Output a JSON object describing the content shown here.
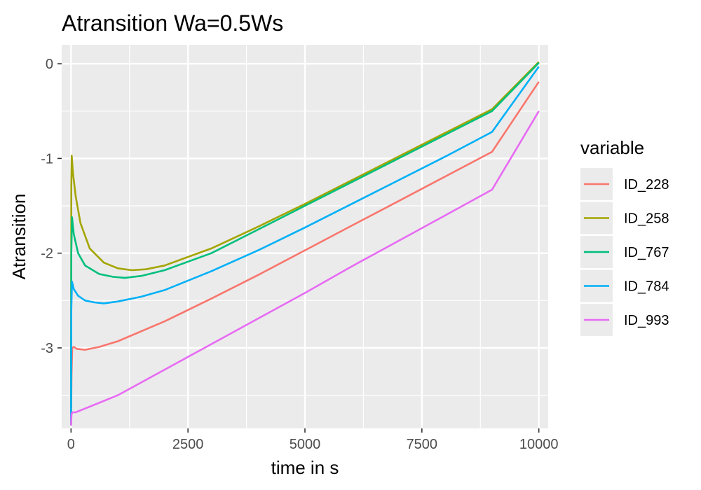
{
  "chart_data": {
    "type": "line",
    "title": "Atransition Wa=0.5Ws",
    "xlabel": "time in s",
    "ylabel": "Atransition",
    "xlim": [
      -200,
      10200
    ],
    "ylim": [
      -3.85,
      0.2
    ],
    "x_ticks": [
      0,
      2500,
      5000,
      7500,
      10000
    ],
    "x_tick_labels": [
      "0",
      "2500",
      "5000",
      "7500",
      "10000"
    ],
    "y_ticks": [
      0,
      -1,
      -2,
      -3
    ],
    "y_tick_labels": [
      "0",
      "-1",
      "-2",
      "-3"
    ],
    "grid": true,
    "legend": {
      "title": "variable",
      "position": "right"
    },
    "series": [
      {
        "name": "ID_228",
        "color": "#F8766D",
        "points": [
          [
            0,
            -3.82
          ],
          [
            10,
            -3.3
          ],
          [
            25,
            -3.0
          ],
          [
            60,
            -2.99
          ],
          [
            120,
            -3.01
          ],
          [
            300,
            -3.02
          ],
          [
            600,
            -2.99
          ],
          [
            1000,
            -2.93
          ],
          [
            2000,
            -2.72
          ],
          [
            3000,
            -2.48
          ],
          [
            4000,
            -2.23
          ],
          [
            5000,
            -1.97
          ],
          [
            6000,
            -1.71
          ],
          [
            7000,
            -1.45
          ],
          [
            8000,
            -1.19
          ],
          [
            9000,
            -0.93
          ],
          [
            10000,
            -0.19
          ]
        ]
      },
      {
        "name": "ID_258",
        "color": "#A3A500",
        "points": [
          [
            0,
            -3.82
          ],
          [
            5,
            -1.3
          ],
          [
            15,
            -0.97
          ],
          [
            40,
            -1.15
          ],
          [
            100,
            -1.4
          ],
          [
            200,
            -1.68
          ],
          [
            400,
            -1.95
          ],
          [
            700,
            -2.1
          ],
          [
            1000,
            -2.16
          ],
          [
            1300,
            -2.18
          ],
          [
            1600,
            -2.17
          ],
          [
            2000,
            -2.13
          ],
          [
            3000,
            -1.95
          ],
          [
            4000,
            -1.72
          ],
          [
            5000,
            -1.48
          ],
          [
            6000,
            -1.23
          ],
          [
            7000,
            -0.98
          ],
          [
            8000,
            -0.73
          ],
          [
            9000,
            -0.48
          ],
          [
            10000,
            0.02
          ]
        ]
      },
      {
        "name": "ID_767",
        "color": "#00BF7D",
        "points": [
          [
            0,
            -3.82
          ],
          [
            5,
            -2.0
          ],
          [
            20,
            -1.62
          ],
          [
            60,
            -1.8
          ],
          [
            150,
            -2.0
          ],
          [
            300,
            -2.13
          ],
          [
            600,
            -2.22
          ],
          [
            900,
            -2.25
          ],
          [
            1150,
            -2.26
          ],
          [
            1500,
            -2.24
          ],
          [
            2000,
            -2.18
          ],
          [
            3000,
            -2.0
          ],
          [
            4000,
            -1.75
          ],
          [
            5000,
            -1.5
          ],
          [
            6000,
            -1.25
          ],
          [
            7000,
            -1.0
          ],
          [
            8000,
            -0.75
          ],
          [
            9000,
            -0.5
          ],
          [
            10000,
            0.01
          ]
        ]
      },
      {
        "name": "ID_784",
        "color": "#00B0F6",
        "points": [
          [
            0,
            -3.82
          ],
          [
            5,
            -2.6
          ],
          [
            20,
            -2.3
          ],
          [
            60,
            -2.38
          ],
          [
            150,
            -2.45
          ],
          [
            300,
            -2.5
          ],
          [
            500,
            -2.52
          ],
          [
            700,
            -2.53
          ],
          [
            1000,
            -2.51
          ],
          [
            1500,
            -2.46
          ],
          [
            2000,
            -2.39
          ],
          [
            3000,
            -2.19
          ],
          [
            4000,
            -1.97
          ],
          [
            5000,
            -1.73
          ],
          [
            6000,
            -1.48
          ],
          [
            7000,
            -1.23
          ],
          [
            8000,
            -0.98
          ],
          [
            9000,
            -0.72
          ],
          [
            10000,
            -0.03
          ]
        ]
      },
      {
        "name": "ID_993",
        "color": "#E76BF3",
        "points": [
          [
            0,
            -3.82
          ],
          [
            10,
            -3.7
          ],
          [
            30,
            -3.68
          ],
          [
            100,
            -3.68
          ],
          [
            300,
            -3.64
          ],
          [
            600,
            -3.58
          ],
          [
            1000,
            -3.5
          ],
          [
            2000,
            -3.23
          ],
          [
            3000,
            -2.96
          ],
          [
            4000,
            -2.69
          ],
          [
            5000,
            -2.42
          ],
          [
            6000,
            -2.14
          ],
          [
            7000,
            -1.87
          ],
          [
            8000,
            -1.6
          ],
          [
            9000,
            -1.33
          ],
          [
            10000,
            -0.5
          ]
        ]
      }
    ]
  }
}
